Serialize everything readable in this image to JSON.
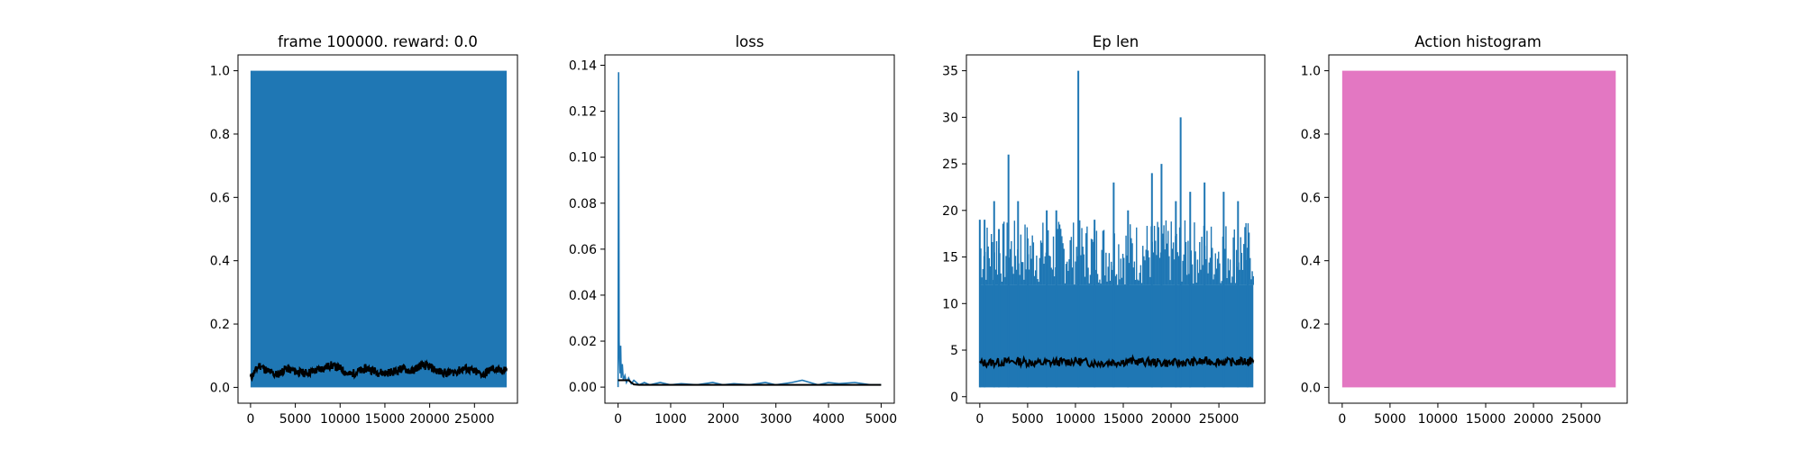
{
  "colors": {
    "blue": "#1f77b4",
    "black": "#000000",
    "pink": "#e377c2",
    "axis": "#000000",
    "background": "#ffffff"
  },
  "chart_data": [
    {
      "type": "line",
      "title": "frame 100000. reward: 0.0",
      "xlim": [
        -1400,
        29800
      ],
      "ylim": [
        -0.05,
        1.05
      ],
      "xticks": [
        0,
        5000,
        10000,
        15000,
        20000,
        25000
      ],
      "xtick_labels": [
        "0",
        "5000",
        "10000",
        "15000",
        "20000",
        "25000"
      ],
      "yticks": [
        0.0,
        0.2,
        0.4,
        0.6,
        0.8,
        1.0
      ],
      "ytick_labels": [
        "0.0",
        "0.2",
        "0.4",
        "0.6",
        "0.8",
        "1.0"
      ],
      "series": [
        {
          "kind": "raw",
          "color": "#1f77b4",
          "description_values": "oscillates between 0 and 1 every frame across 0-28600",
          "x_range": [
            0,
            28600
          ],
          "y_min": 0.0,
          "y_max": 1.0
        },
        {
          "kind": "smoothed",
          "color": "#000000",
          "x": [
            0,
            1000,
            2000,
            3000,
            4000,
            5000,
            6000,
            7000,
            8000,
            9000,
            10000,
            11000,
            12000,
            13000,
            14000,
            15000,
            16000,
            17000,
            18000,
            19000,
            20000,
            21000,
            22000,
            23000,
            24000,
            25000,
            26000,
            27000,
            28000,
            28600
          ],
          "y": [
            0.03,
            0.07,
            0.05,
            0.04,
            0.06,
            0.05,
            0.045,
            0.05,
            0.06,
            0.07,
            0.06,
            0.04,
            0.05,
            0.06,
            0.05,
            0.045,
            0.05,
            0.06,
            0.05,
            0.07,
            0.065,
            0.05,
            0.045,
            0.05,
            0.06,
            0.05,
            0.04,
            0.06,
            0.05,
            0.06
          ]
        }
      ]
    },
    {
      "type": "line",
      "title": "loss",
      "xlim": [
        -250,
        5250
      ],
      "ylim": [
        -0.007,
        0.1445
      ],
      "xticks": [
        0,
        1000,
        2000,
        3000,
        4000,
        5000
      ],
      "xtick_labels": [
        "0",
        "1000",
        "2000",
        "3000",
        "4000",
        "5000"
      ],
      "yticks": [
        0.0,
        0.02,
        0.04,
        0.06,
        0.08,
        0.1,
        0.12,
        0.14
      ],
      "ytick_labels": [
        "0.00",
        "0.02",
        "0.04",
        "0.06",
        "0.08",
        "0.10",
        "0.12",
        "0.14"
      ],
      "series": [
        {
          "kind": "raw",
          "color": "#1f77b4",
          "x": [
            0,
            10,
            20,
            30,
            40,
            50,
            60,
            80,
            100,
            130,
            160,
            200,
            250,
            300,
            400,
            500,
            600,
            800,
            1000,
            1200,
            1500,
            1800,
            2000,
            2200,
            2500,
            2800,
            3000,
            3300,
            3500,
            3800,
            4000,
            4200,
            4500,
            4800,
            5000
          ],
          "y": [
            0.0,
            0.137,
            0.02,
            0.012,
            0.006,
            0.018,
            0.004,
            0.01,
            0.003,
            0.005,
            0.002,
            0.004,
            0.0015,
            0.003,
            0.001,
            0.002,
            0.001,
            0.002,
            0.001,
            0.0015,
            0.001,
            0.002,
            0.001,
            0.0015,
            0.001,
            0.002,
            0.001,
            0.002,
            0.003,
            0.001,
            0.002,
            0.0015,
            0.002,
            0.001,
            0.001
          ]
        },
        {
          "kind": "smoothed",
          "color": "#000000",
          "x": [
            0,
            100,
            200,
            250,
            300,
            400,
            600,
            1000,
            2000,
            3000,
            4000,
            5000
          ],
          "y": [
            0.003,
            0.003,
            0.003,
            0.002,
            0.0012,
            0.001,
            0.001,
            0.001,
            0.001,
            0.001,
            0.001,
            0.001
          ]
        }
      ]
    },
    {
      "type": "line",
      "title": "Ep len",
      "xlim": [
        -1400,
        29800
      ],
      "ylim": [
        -0.7,
        36.7
      ],
      "xticks": [
        0,
        5000,
        10000,
        15000,
        20000,
        25000
      ],
      "xtick_labels": [
        "0",
        "5000",
        "10000",
        "15000",
        "20000",
        "25000"
      ],
      "yticks": [
        0,
        5,
        10,
        15,
        20,
        25,
        30,
        35
      ],
      "ytick_labels": [
        "0",
        "5",
        "10",
        "15",
        "20",
        "25",
        "30",
        "35"
      ],
      "series": [
        {
          "kind": "raw",
          "color": "#1f77b4",
          "description_values": "dense band between 1 and ~12-17 with spikes",
          "band_min": 1,
          "band_max_typical": 12,
          "peaks_x": [
            0,
            500,
            1500,
            2000,
            3000,
            4000,
            5000,
            7000,
            8000,
            10300,
            12000,
            14000,
            15500,
            18000,
            19000,
            20500,
            21000,
            22000,
            23500,
            25500,
            27000,
            28000
          ],
          "peaks_y": [
            19,
            19,
            21,
            18,
            26,
            21,
            17,
            20,
            20,
            35,
            19,
            23,
            20,
            24,
            25,
            21,
            30,
            22,
            23,
            22,
            21,
            16
          ]
        },
        {
          "kind": "smoothed",
          "color": "#000000",
          "x": [
            0,
            2000,
            4000,
            6000,
            8000,
            10000,
            12000,
            14000,
            16000,
            18000,
            20000,
            22000,
            24000,
            26000,
            28000,
            28600
          ],
          "y": [
            3.6,
            3.7,
            3.8,
            3.6,
            3.7,
            3.8,
            3.6,
            3.7,
            3.8,
            3.7,
            3.6,
            3.7,
            3.8,
            3.7,
            3.8,
            3.9
          ]
        }
      ]
    },
    {
      "type": "bar",
      "title": "Action histogram",
      "xlim": [
        -1400,
        29800
      ],
      "ylim": [
        -0.05,
        1.05
      ],
      "xticks": [
        0,
        5000,
        10000,
        15000,
        20000,
        25000
      ],
      "xtick_labels": [
        "0",
        "5000",
        "10000",
        "15000",
        "20000",
        "25000"
      ],
      "yticks": [
        0.0,
        0.2,
        0.4,
        0.6,
        0.8,
        1.0
      ],
      "ytick_labels": [
        "0.0",
        "0.2",
        "0.4",
        "0.6",
        "0.8",
        "1.0"
      ],
      "series": [
        {
          "kind": "stacked-area",
          "color": "#e377c2",
          "x_range": [
            0,
            28600
          ],
          "y_range": [
            0.0,
            1.0
          ]
        }
      ]
    }
  ]
}
